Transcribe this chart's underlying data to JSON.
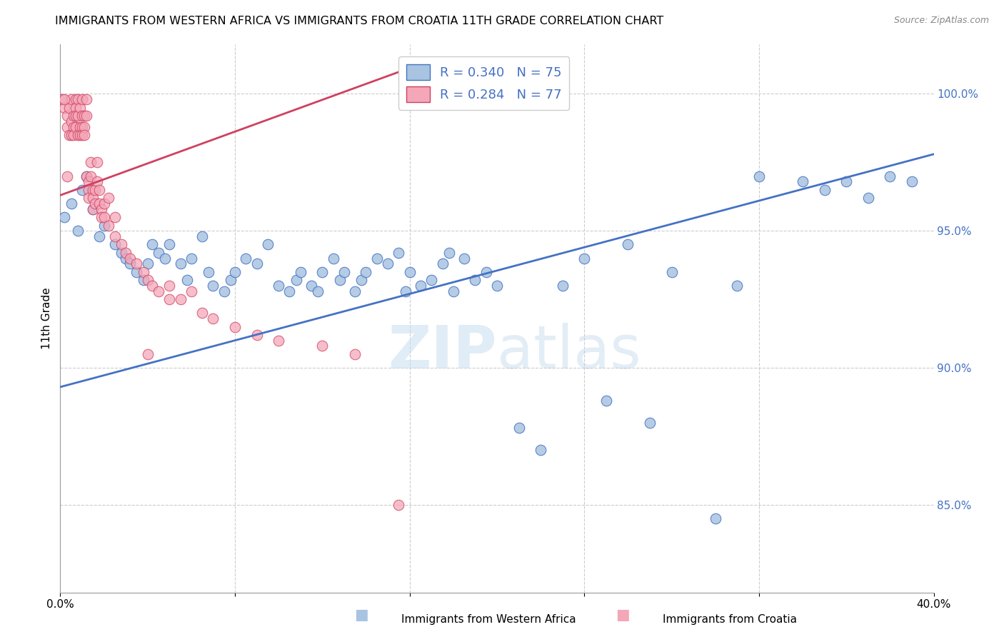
{
  "title": "IMMIGRANTS FROM WESTERN AFRICA VS IMMIGRANTS FROM CROATIA 11TH GRADE CORRELATION CHART",
  "source": "Source: ZipAtlas.com",
  "ylabel": "11th Grade",
  "legend_label_blue": "Immigrants from Western Africa",
  "legend_label_pink": "Immigrants from Croatia",
  "R_blue": 0.34,
  "N_blue": 75,
  "R_pink": 0.284,
  "N_pink": 77,
  "x_min": 0.0,
  "x_max": 0.4,
  "y_min": 0.818,
  "y_max": 1.018,
  "right_yticks": [
    0.85,
    0.9,
    0.95,
    1.0
  ],
  "right_yticklabels": [
    "85.0%",
    "90.0%",
    "95.0%",
    "100.0%"
  ],
  "xticks": [
    0.0,
    0.08,
    0.16,
    0.24,
    0.32,
    0.4
  ],
  "xticklabels": [
    "0.0%",
    "",
    "",
    "",
    "",
    "40.0%"
  ],
  "color_blue": "#a8c4e0",
  "color_pink": "#f4a7b9",
  "color_blue_line": "#4472c4",
  "color_pink_line": "#d04060",
  "watermark_zip": "ZIP",
  "watermark_atlas": "atlas",
  "blue_scatter_x": [
    0.002,
    0.005,
    0.008,
    0.01,
    0.012,
    0.015,
    0.018,
    0.02,
    0.025,
    0.028,
    0.03,
    0.032,
    0.035,
    0.038,
    0.04,
    0.042,
    0.045,
    0.048,
    0.05,
    0.055,
    0.058,
    0.06,
    0.065,
    0.068,
    0.07,
    0.075,
    0.078,
    0.08,
    0.085,
    0.09,
    0.095,
    0.1,
    0.105,
    0.108,
    0.11,
    0.115,
    0.118,
    0.12,
    0.125,
    0.128,
    0.13,
    0.135,
    0.138,
    0.14,
    0.145,
    0.15,
    0.155,
    0.158,
    0.16,
    0.165,
    0.17,
    0.175,
    0.178,
    0.18,
    0.185,
    0.19,
    0.195,
    0.2,
    0.21,
    0.22,
    0.23,
    0.24,
    0.25,
    0.26,
    0.27,
    0.28,
    0.3,
    0.31,
    0.32,
    0.34,
    0.35,
    0.36,
    0.37,
    0.38,
    0.39
  ],
  "blue_scatter_y": [
    0.955,
    0.96,
    0.95,
    0.965,
    0.97,
    0.958,
    0.948,
    0.952,
    0.945,
    0.942,
    0.94,
    0.938,
    0.935,
    0.932,
    0.938,
    0.945,
    0.942,
    0.94,
    0.945,
    0.938,
    0.932,
    0.94,
    0.948,
    0.935,
    0.93,
    0.928,
    0.932,
    0.935,
    0.94,
    0.938,
    0.945,
    0.93,
    0.928,
    0.932,
    0.935,
    0.93,
    0.928,
    0.935,
    0.94,
    0.932,
    0.935,
    0.928,
    0.932,
    0.935,
    0.94,
    0.938,
    0.942,
    0.928,
    0.935,
    0.93,
    0.932,
    0.938,
    0.942,
    0.928,
    0.94,
    0.932,
    0.935,
    0.93,
    0.878,
    0.87,
    0.93,
    0.94,
    0.888,
    0.945,
    0.88,
    0.935,
    0.845,
    0.93,
    0.97,
    0.968,
    0.965,
    0.968,
    0.962,
    0.97,
    0.968
  ],
  "pink_scatter_x": [
    0.001,
    0.002,
    0.003,
    0.003,
    0.004,
    0.004,
    0.005,
    0.005,
    0.005,
    0.006,
    0.006,
    0.006,
    0.007,
    0.007,
    0.007,
    0.007,
    0.008,
    0.008,
    0.008,
    0.009,
    0.009,
    0.009,
    0.01,
    0.01,
    0.01,
    0.01,
    0.011,
    0.011,
    0.011,
    0.012,
    0.012,
    0.012,
    0.013,
    0.013,
    0.013,
    0.014,
    0.014,
    0.015,
    0.015,
    0.015,
    0.016,
    0.016,
    0.017,
    0.017,
    0.018,
    0.018,
    0.019,
    0.019,
    0.02,
    0.02,
    0.022,
    0.022,
    0.025,
    0.025,
    0.028,
    0.03,
    0.032,
    0.035,
    0.038,
    0.04,
    0.042,
    0.045,
    0.05,
    0.055,
    0.06,
    0.065,
    0.07,
    0.08,
    0.09,
    0.1,
    0.12,
    0.135,
    0.002,
    0.003,
    0.04,
    0.05,
    0.155
  ],
  "pink_scatter_y": [
    0.998,
    0.995,
    0.992,
    0.988,
    0.985,
    0.995,
    0.99,
    0.985,
    0.998,
    0.992,
    0.988,
    0.985,
    0.998,
    0.995,
    0.992,
    0.988,
    0.985,
    0.998,
    0.992,
    0.988,
    0.985,
    0.995,
    0.992,
    0.988,
    0.985,
    0.998,
    0.992,
    0.988,
    0.985,
    0.998,
    0.992,
    0.97,
    0.968,
    0.965,
    0.962,
    0.975,
    0.97,
    0.965,
    0.962,
    0.958,
    0.965,
    0.96,
    0.975,
    0.968,
    0.965,
    0.96,
    0.958,
    0.955,
    0.96,
    0.955,
    0.962,
    0.952,
    0.955,
    0.948,
    0.945,
    0.942,
    0.94,
    0.938,
    0.935,
    0.932,
    0.93,
    0.928,
    0.925,
    0.925,
    0.928,
    0.92,
    0.918,
    0.915,
    0.912,
    0.91,
    0.908,
    0.905,
    0.998,
    0.97,
    0.905,
    0.93,
    0.85
  ],
  "blue_trend_x": [
    0.0,
    0.4
  ],
  "blue_trend_y": [
    0.893,
    0.978
  ],
  "pink_trend_x": [
    0.0,
    0.155
  ],
  "pink_trend_y": [
    0.963,
    1.008
  ]
}
